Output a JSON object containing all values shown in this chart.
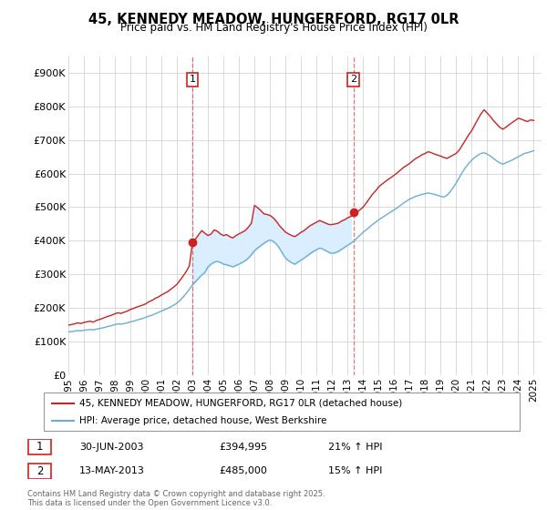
{
  "title": "45, KENNEDY MEADOW, HUNGERFORD, RG17 0LR",
  "subtitle": "Price paid vs. HM Land Registry's House Price Index (HPI)",
  "legend_line1": "45, KENNEDY MEADOW, HUNGERFORD, RG17 0LR (detached house)",
  "legend_line2": "HPI: Average price, detached house, West Berkshire",
  "annotation1_label": "1",
  "annotation1_date": "30-JUN-2003",
  "annotation1_price": "£394,995",
  "annotation1_hpi": "21% ↑ HPI",
  "annotation1_year": 2003.0,
  "annotation1_value": 395000,
  "annotation2_label": "2",
  "annotation2_date": "13-MAY-2013",
  "annotation2_price": "£485,000",
  "annotation2_hpi": "15% ↑ HPI",
  "annotation2_year": 2013.37,
  "annotation2_value": 485000,
  "ylim": [
    0,
    950000
  ],
  "yticks": [
    0,
    100000,
    200000,
    300000,
    400000,
    500000,
    600000,
    700000,
    800000,
    900000
  ],
  "yticklabels": [
    "£0",
    "£100K",
    "£200K",
    "£300K",
    "£400K",
    "£500K",
    "£600K",
    "£700K",
    "£800K",
    "£900K"
  ],
  "red_color": "#cc2222",
  "blue_color": "#6aaed6",
  "shaded_color": "#daeeff",
  "grid_color": "#cccccc",
  "background_color": "#ffffff",
  "red_data_years": [
    1995.0,
    1995.2,
    1995.4,
    1995.6,
    1995.8,
    1996.0,
    1996.2,
    1996.4,
    1996.6,
    1996.8,
    1997.0,
    1997.2,
    1997.4,
    1997.6,
    1997.8,
    1998.0,
    1998.2,
    1998.4,
    1998.6,
    1998.8,
    1999.0,
    1999.2,
    1999.4,
    1999.6,
    1999.8,
    2000.0,
    2000.2,
    2000.4,
    2000.6,
    2000.8,
    2001.0,
    2001.2,
    2001.4,
    2001.6,
    2001.8,
    2002.0,
    2002.2,
    2002.4,
    2002.6,
    2002.8,
    2003.0,
    2003.2,
    2003.4,
    2003.6,
    2003.8,
    2004.0,
    2004.2,
    2004.4,
    2004.6,
    2004.8,
    2005.0,
    2005.2,
    2005.4,
    2005.6,
    2005.8,
    2006.0,
    2006.2,
    2006.4,
    2006.6,
    2006.8,
    2007.0,
    2007.2,
    2007.4,
    2007.6,
    2007.8,
    2008.0,
    2008.2,
    2008.4,
    2008.6,
    2008.8,
    2009.0,
    2009.2,
    2009.4,
    2009.6,
    2009.8,
    2010.0,
    2010.2,
    2010.4,
    2010.6,
    2010.8,
    2011.0,
    2011.2,
    2011.4,
    2011.6,
    2011.8,
    2012.0,
    2012.2,
    2012.4,
    2012.6,
    2012.8,
    2013.0,
    2013.2,
    2013.4,
    2013.6,
    2013.8,
    2014.0,
    2014.2,
    2014.4,
    2014.6,
    2014.8,
    2015.0,
    2015.2,
    2015.4,
    2015.6,
    2015.8,
    2016.0,
    2016.2,
    2016.4,
    2016.6,
    2016.8,
    2017.0,
    2017.2,
    2017.4,
    2017.6,
    2017.8,
    2018.0,
    2018.2,
    2018.4,
    2018.6,
    2018.8,
    2019.0,
    2019.2,
    2019.4,
    2019.6,
    2019.8,
    2020.0,
    2020.2,
    2020.4,
    2020.6,
    2020.8,
    2021.0,
    2021.2,
    2021.4,
    2021.6,
    2021.8,
    2022.0,
    2022.2,
    2022.4,
    2022.6,
    2022.8,
    2023.0,
    2023.2,
    2023.4,
    2023.6,
    2023.8,
    2024.0,
    2024.2,
    2024.4,
    2024.6,
    2024.8,
    2025.0
  ],
  "red_data_vals": [
    148000,
    150000,
    152000,
    155000,
    153000,
    156000,
    158000,
    160000,
    157000,
    162000,
    165000,
    168000,
    172000,
    175000,
    178000,
    182000,
    185000,
    183000,
    187000,
    190000,
    195000,
    198000,
    202000,
    205000,
    208000,
    212000,
    218000,
    222000,
    228000,
    232000,
    238000,
    243000,
    248000,
    255000,
    262000,
    270000,
    282000,
    295000,
    308000,
    325000,
    395000,
    405000,
    418000,
    430000,
    422000,
    415000,
    420000,
    432000,
    428000,
    420000,
    415000,
    418000,
    412000,
    408000,
    415000,
    420000,
    425000,
    430000,
    440000,
    452000,
    505000,
    498000,
    490000,
    480000,
    478000,
    475000,
    468000,
    458000,
    445000,
    435000,
    425000,
    420000,
    415000,
    412000,
    418000,
    425000,
    430000,
    438000,
    445000,
    450000,
    455000,
    460000,
    456000,
    452000,
    448000,
    448000,
    450000,
    452000,
    458000,
    462000,
    468000,
    472000,
    478000,
    485000,
    492000,
    500000,
    512000,
    525000,
    538000,
    548000,
    560000,
    568000,
    575000,
    582000,
    588000,
    595000,
    602000,
    610000,
    618000,
    624000,
    630000,
    638000,
    645000,
    650000,
    656000,
    660000,
    665000,
    662000,
    658000,
    655000,
    652000,
    648000,
    645000,
    650000,
    655000,
    660000,
    670000,
    685000,
    700000,
    715000,
    728000,
    745000,
    762000,
    778000,
    790000,
    780000,
    770000,
    758000,
    748000,
    738000,
    732000,
    738000,
    745000,
    752000,
    758000,
    765000,
    762000,
    758000,
    755000,
    760000,
    758000
  ],
  "blue_data_years": [
    1995.0,
    1995.2,
    1995.4,
    1995.6,
    1995.8,
    1996.0,
    1996.2,
    1996.4,
    1996.6,
    1996.8,
    1997.0,
    1997.2,
    1997.4,
    1997.6,
    1997.8,
    1998.0,
    1998.2,
    1998.4,
    1998.6,
    1998.8,
    1999.0,
    1999.2,
    1999.4,
    1999.6,
    1999.8,
    2000.0,
    2000.2,
    2000.4,
    2000.6,
    2000.8,
    2001.0,
    2001.2,
    2001.4,
    2001.6,
    2001.8,
    2002.0,
    2002.2,
    2002.4,
    2002.6,
    2002.8,
    2003.0,
    2003.2,
    2003.4,
    2003.6,
    2003.8,
    2004.0,
    2004.2,
    2004.4,
    2004.6,
    2004.8,
    2005.0,
    2005.2,
    2005.4,
    2005.6,
    2005.8,
    2006.0,
    2006.2,
    2006.4,
    2006.6,
    2006.8,
    2007.0,
    2007.2,
    2007.4,
    2007.6,
    2007.8,
    2008.0,
    2008.2,
    2008.4,
    2008.6,
    2008.8,
    2009.0,
    2009.2,
    2009.4,
    2009.6,
    2009.8,
    2010.0,
    2010.2,
    2010.4,
    2010.6,
    2010.8,
    2011.0,
    2011.2,
    2011.4,
    2011.6,
    2011.8,
    2012.0,
    2012.2,
    2012.4,
    2012.6,
    2012.8,
    2013.0,
    2013.2,
    2013.4,
    2013.6,
    2013.8,
    2014.0,
    2014.2,
    2014.4,
    2014.6,
    2014.8,
    2015.0,
    2015.2,
    2015.4,
    2015.6,
    2015.8,
    2016.0,
    2016.2,
    2016.4,
    2016.6,
    2016.8,
    2017.0,
    2017.2,
    2017.4,
    2017.6,
    2017.8,
    2018.0,
    2018.2,
    2018.4,
    2018.6,
    2018.8,
    2019.0,
    2019.2,
    2019.4,
    2019.6,
    2019.8,
    2020.0,
    2020.2,
    2020.4,
    2020.6,
    2020.8,
    2021.0,
    2021.2,
    2021.4,
    2021.6,
    2021.8,
    2022.0,
    2022.2,
    2022.4,
    2022.6,
    2022.8,
    2023.0,
    2023.2,
    2023.4,
    2023.6,
    2023.8,
    2024.0,
    2024.2,
    2024.4,
    2024.6,
    2024.8,
    2025.0
  ],
  "blue_data_vals": [
    128000,
    129000,
    130000,
    132000,
    131000,
    133000,
    134000,
    135000,
    134000,
    136000,
    138000,
    140000,
    142000,
    145000,
    147000,
    150000,
    152000,
    151000,
    153000,
    155000,
    158000,
    160000,
    163000,
    166000,
    168000,
    172000,
    175000,
    178000,
    182000,
    186000,
    190000,
    194000,
    198000,
    203000,
    208000,
    214000,
    222000,
    232000,
    243000,
    255000,
    268000,
    278000,
    288000,
    298000,
    305000,
    322000,
    330000,
    336000,
    338000,
    335000,
    330000,
    328000,
    325000,
    322000,
    326000,
    330000,
    335000,
    340000,
    348000,
    358000,
    370000,
    378000,
    385000,
    392000,
    398000,
    402000,
    398000,
    390000,
    378000,
    362000,
    348000,
    340000,
    334000,
    330000,
    336000,
    342000,
    348000,
    355000,
    362000,
    368000,
    373000,
    378000,
    375000,
    370000,
    365000,
    362000,
    364000,
    368000,
    374000,
    380000,
    386000,
    392000,
    398000,
    408000,
    416000,
    425000,
    432000,
    440000,
    448000,
    455000,
    462000,
    468000,
    474000,
    480000,
    486000,
    492000,
    498000,
    505000,
    512000,
    518000,
    524000,
    528000,
    532000,
    535000,
    538000,
    540000,
    542000,
    540000,
    538000,
    535000,
    532000,
    530000,
    535000,
    545000,
    558000,
    572000,
    588000,
    604000,
    618000,
    630000,
    640000,
    648000,
    655000,
    660000,
    662000,
    658000,
    652000,
    645000,
    638000,
    632000,
    628000,
    632000,
    636000,
    640000,
    645000,
    650000,
    655000,
    660000,
    662000,
    665000,
    668000
  ],
  "xtick_years": [
    1995,
    1996,
    1997,
    1998,
    1999,
    2000,
    2001,
    2002,
    2003,
    2004,
    2005,
    2006,
    2007,
    2008,
    2009,
    2010,
    2011,
    2012,
    2013,
    2014,
    2015,
    2016,
    2017,
    2018,
    2019,
    2020,
    2021,
    2022,
    2023,
    2024,
    2025
  ],
  "footnote": "Contains HM Land Registry data © Crown copyright and database right 2025.\nThis data is licensed under the Open Government Licence v3.0."
}
